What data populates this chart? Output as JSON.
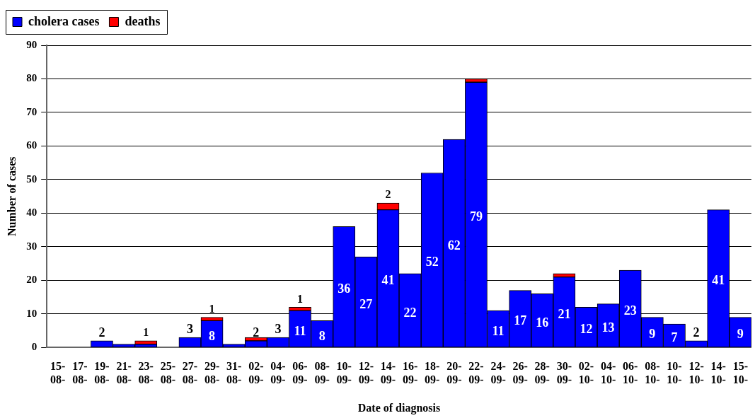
{
  "chart_data": {
    "type": "bar",
    "stacked": true,
    "xlabel": "Date of diagnosis",
    "ylabel": "Number of cases",
    "categories": [
      "15-\n08-",
      "17-\n08-",
      "19-\n08-",
      "21-\n08-",
      "23-\n08-",
      "25-\n08-",
      "27-\n08-",
      "29-\n08-",
      "31-\n08-",
      "02-\n09-",
      "04-\n09-",
      "06-\n09-",
      "08-\n09-",
      "10-\n09-",
      "12-\n09-",
      "14-\n09-",
      "16-\n09-",
      "18-\n09-",
      "20-\n09-",
      "22-\n09-",
      "24-\n09-",
      "26-\n09-",
      "28-\n09-",
      "30-\n09-",
      "02-\n10-",
      "04-\n10-",
      "06-\n10-",
      "08-\n10-",
      "10-\n10-",
      "12-\n10-",
      "14-\n10-",
      "15-\n10-"
    ],
    "series": [
      {
        "name": "cholera cases",
        "color": "#0000ff",
        "values": [
          0,
          0,
          2,
          1,
          1,
          0,
          3,
          8,
          1,
          2,
          3,
          11,
          8,
          36,
          27,
          41,
          22,
          52,
          62,
          79,
          11,
          17,
          16,
          21,
          12,
          13,
          23,
          9,
          7,
          2,
          41,
          9
        ],
        "value_labels": [
          null,
          null,
          "2",
          null,
          null,
          null,
          "3",
          "8",
          null,
          "2",
          "3",
          "11",
          "8",
          "36",
          "27",
          "41",
          "22",
          "52",
          "62",
          "79",
          "11",
          "17",
          "16",
          "21",
          "12",
          "13",
          "23",
          "9",
          "7",
          "2",
          "41",
          "9"
        ]
      },
      {
        "name": "deaths",
        "color": "#ff0000",
        "values": [
          0,
          0,
          0,
          0,
          1,
          0,
          0,
          1,
          0,
          1,
          0,
          1,
          0,
          0,
          0,
          2,
          0,
          0,
          0,
          1,
          0,
          0,
          0,
          1,
          0,
          0,
          0,
          0,
          0,
          0,
          0,
          0
        ],
        "value_labels": [
          null,
          null,
          null,
          null,
          "1",
          null,
          null,
          "1",
          null,
          null,
          null,
          "1",
          null,
          null,
          null,
          "2",
          null,
          null,
          null,
          null,
          null,
          null,
          null,
          null,
          null,
          null,
          null,
          null,
          null,
          null,
          null,
          null
        ]
      }
    ],
    "ylim": [
      0,
      90
    ],
    "yticks": [
      0,
      10,
      20,
      30,
      40,
      50,
      60,
      70,
      80,
      90
    ],
    "grid": "y",
    "legend": "top left"
  }
}
